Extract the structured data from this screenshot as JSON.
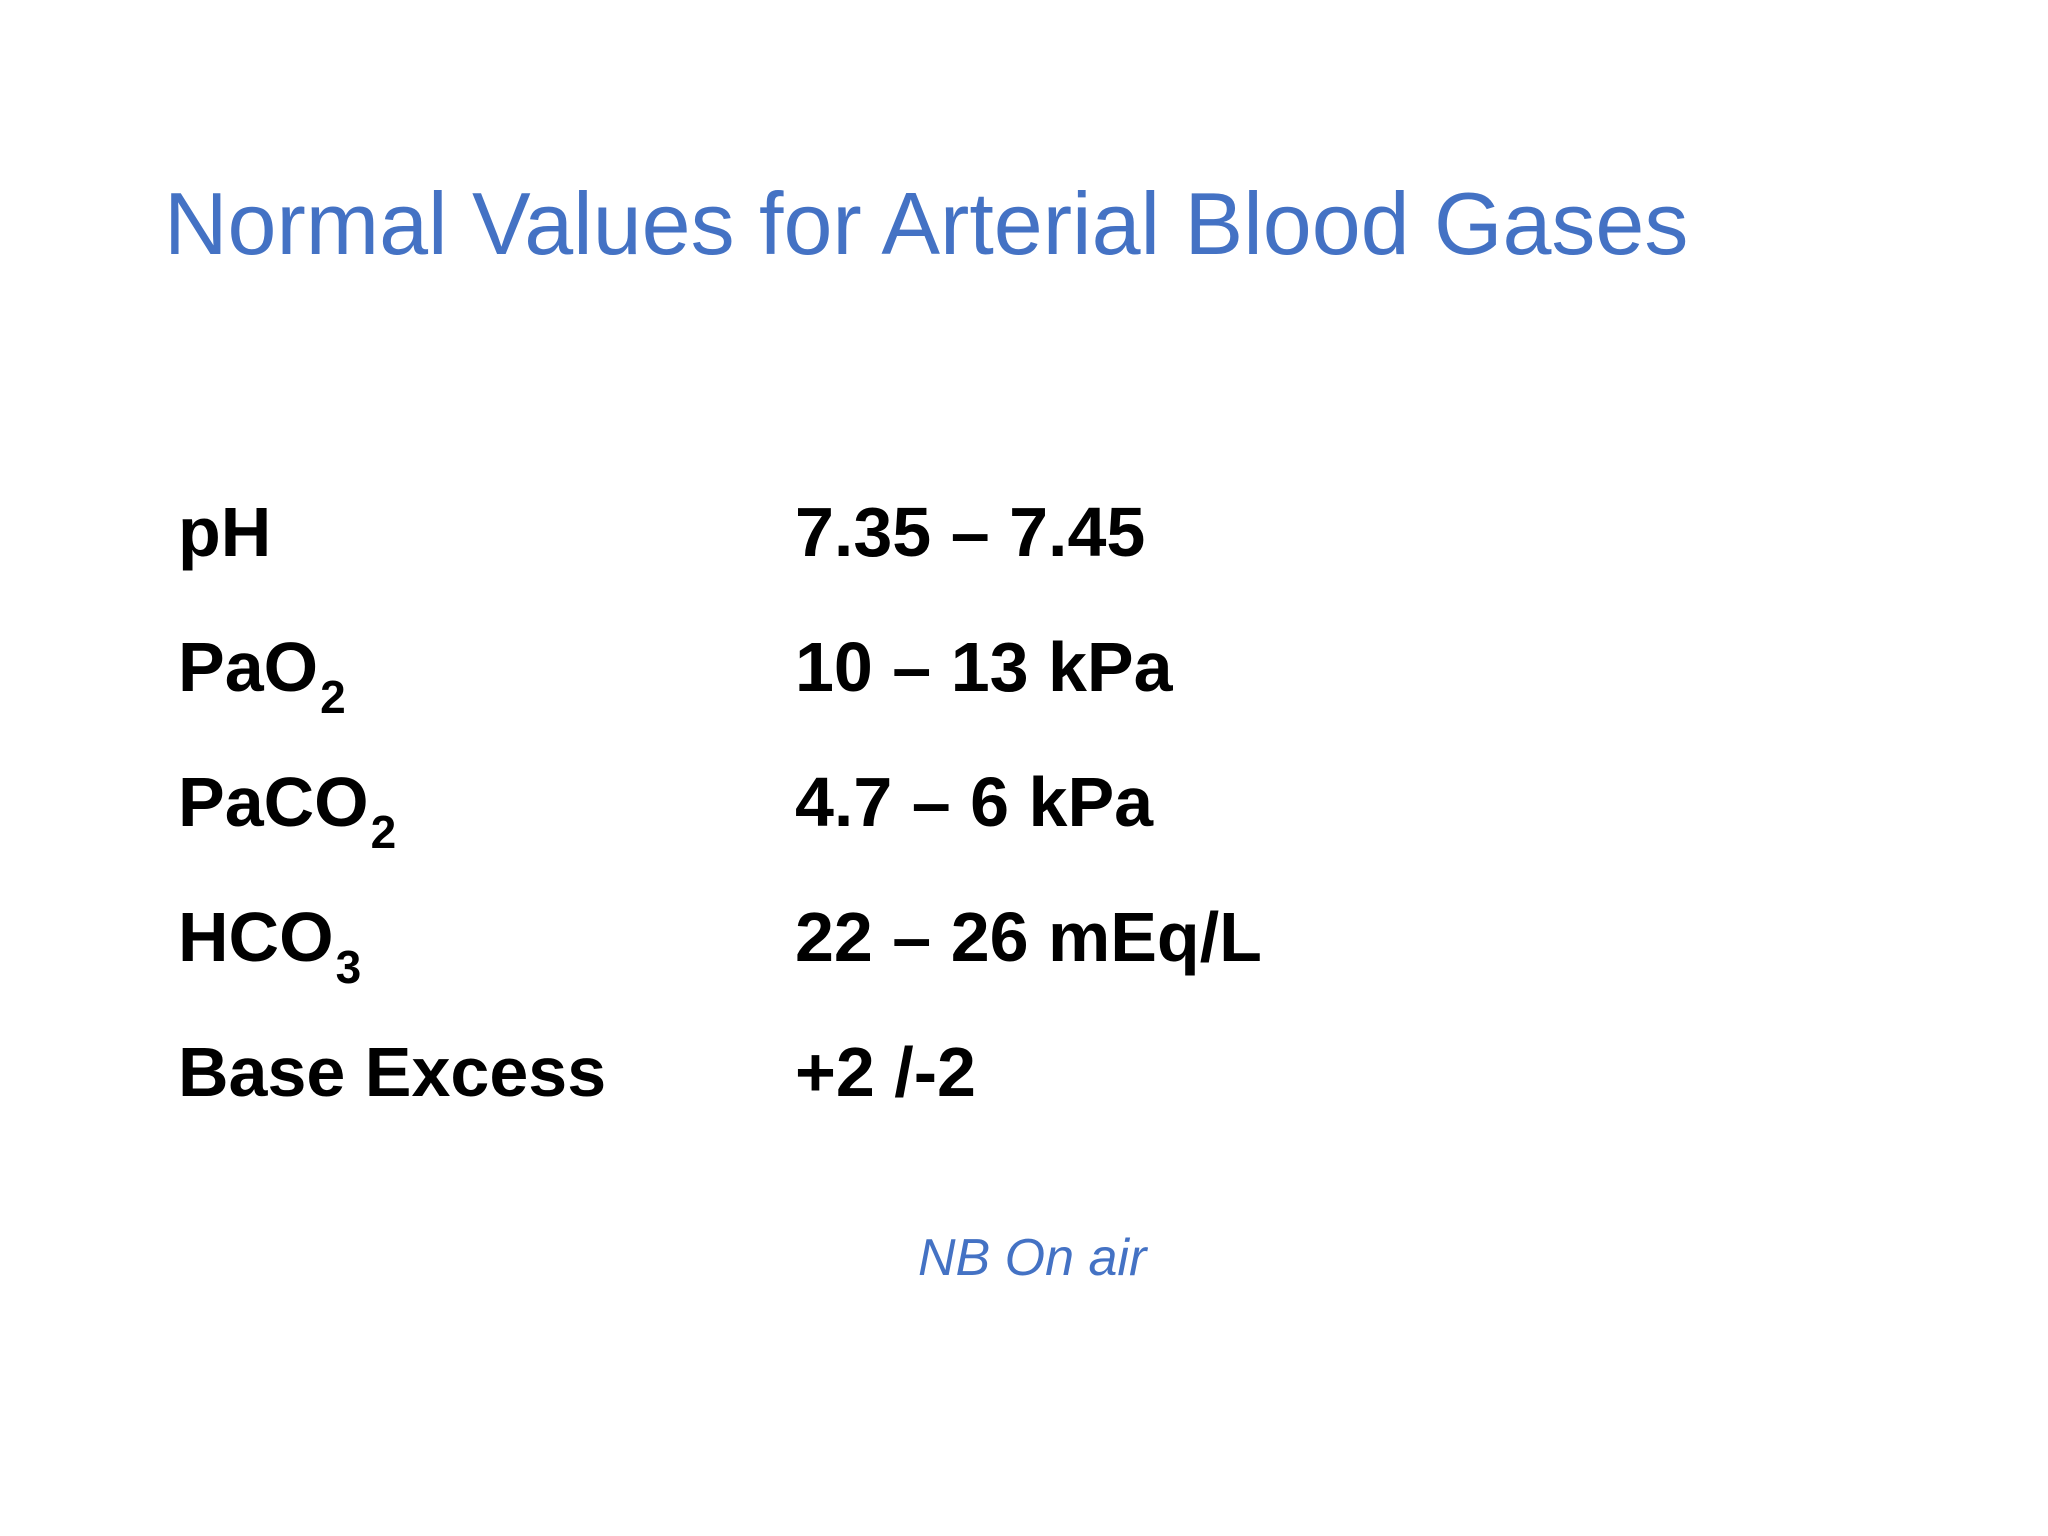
{
  "title": "Normal Values for Arterial Blood Gases",
  "rows": [
    {
      "base": "pH",
      "sub": "",
      "value": "7.35 – 7.45"
    },
    {
      "base": "PaO",
      "sub": "2",
      "value": "10 – 13 kPa"
    },
    {
      "base": "PaCO",
      "sub": "2",
      "value": "4.7 – 6 kPa"
    },
    {
      "base": "HCO",
      "sub": "3",
      "value": "22 – 26 mEq/L"
    },
    {
      "base": "Base Excess",
      "sub": "",
      "value": "+2 /-2"
    }
  ],
  "note": "NB On air",
  "colors": {
    "accent": "#4472c4",
    "text": "#000000",
    "background": "#ffffff"
  }
}
